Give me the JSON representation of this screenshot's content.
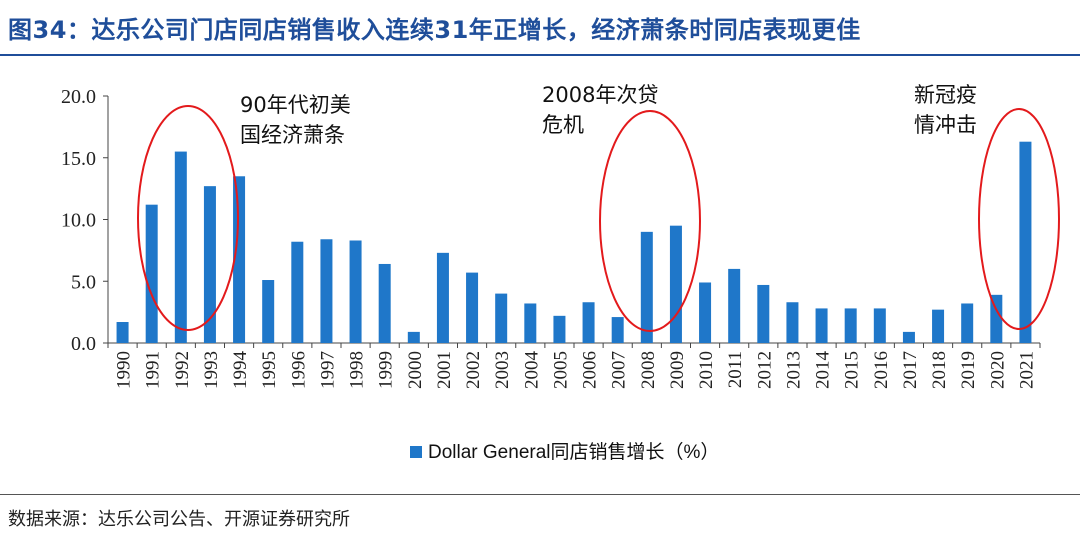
{
  "header": {
    "title": "图34：达乐公司门店同店销售收入连续31年正增长，经济萧条时同店表现更佳"
  },
  "footer": {
    "source": "数据来源：达乐公司公告、开源证券研究所"
  },
  "colors": {
    "bar": "#1f77c9",
    "circle": "#e31a1c",
    "title": "#1f4e9a"
  },
  "chart_data": {
    "type": "bar",
    "categories": [
      "1990",
      "1991",
      "1992",
      "1993",
      "1994",
      "1995",
      "1996",
      "1997",
      "1998",
      "1999",
      "2000",
      "2001",
      "2002",
      "2003",
      "2004",
      "2005",
      "2006",
      "2007",
      "2008",
      "2009",
      "2010",
      "2011",
      "2012",
      "2013",
      "2014",
      "2015",
      "2016",
      "2017",
      "2018",
      "2019",
      "2020",
      "2021"
    ],
    "series": [
      {
        "name": "Dollar General同店销售增长（%）",
        "values": [
          1.7,
          11.2,
          15.5,
          12.7,
          13.5,
          5.1,
          8.2,
          8.4,
          8.3,
          6.4,
          0.9,
          7.3,
          5.7,
          4.0,
          3.2,
          2.2,
          3.3,
          2.1,
          9.0,
          9.5,
          4.9,
          6.0,
          4.7,
          3.3,
          2.8,
          2.8,
          2.8,
          0.9,
          2.7,
          3.2,
          3.9,
          16.3
        ]
      }
    ],
    "ylim": [
      0,
      20
    ],
    "yticks": [
      "0.0",
      "5.0",
      "10.0",
      "15.0",
      "20.0"
    ],
    "legend": "Dollar General同店销售增长（%）",
    "annotations": [
      {
        "lines": [
          "90年代初美",
          "国经济萧条"
        ]
      },
      {
        "lines": [
          "2008年次贷",
          "危机"
        ]
      },
      {
        "lines": [
          "新冠疫",
          "情冲击"
        ]
      }
    ]
  }
}
